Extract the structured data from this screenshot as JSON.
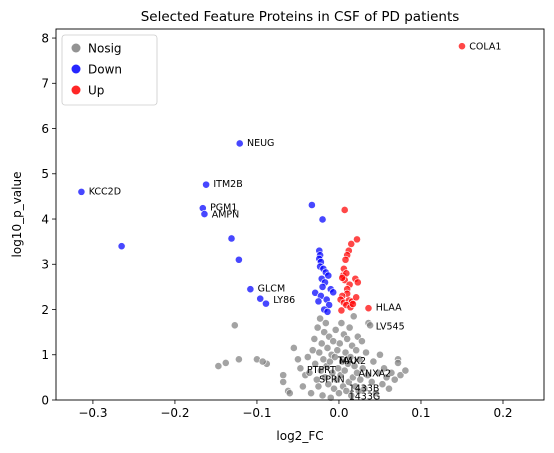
{
  "chart_data": {
    "type": "scatter",
    "title": "Selected Feature Proteins in CSF of PD patients",
    "xlabel": "log2_FC",
    "ylabel": "log10_p_value",
    "xlim": [
      -0.345,
      0.25
    ],
    "ylim": [
      0,
      8.2
    ],
    "x_ticks": [
      -0.3,
      -0.2,
      -0.1,
      0.0,
      0.1,
      0.2
    ],
    "x_tick_labels": [
      "−0.3",
      "−0.2",
      "−0.1",
      "0.0",
      "0.1",
      "0.2"
    ],
    "y_ticks": [
      0,
      1,
      2,
      3,
      4,
      5,
      6,
      7,
      8
    ],
    "y_tick_labels": [
      "0",
      "1",
      "2",
      "3",
      "4",
      "5",
      "6",
      "7",
      "8"
    ],
    "grid": false,
    "legend_position": "top-left",
    "colors": {
      "Nosig": "#808080",
      "Down": "#0000ff",
      "Up": "#ff0000"
    },
    "series": [
      {
        "name": "Nosig",
        "points": [
          [
            -0.127,
            1.65
          ],
          [
            -0.122,
            0.9
          ],
          [
            -0.147,
            0.75
          ],
          [
            -0.138,
            0.82
          ],
          [
            -0.1,
            0.9
          ],
          [
            -0.088,
            0.8
          ],
          [
            -0.093,
            0.85
          ],
          [
            -0.068,
            0.55
          ],
          [
            -0.068,
            0.4
          ],
          [
            -0.062,
            0.2
          ],
          [
            -0.06,
            0.15
          ],
          [
            -0.055,
            1.15
          ],
          [
            -0.05,
            0.9
          ],
          [
            -0.047,
            0.7
          ],
          [
            -0.044,
            0.3
          ],
          [
            -0.041,
            0.55
          ],
          [
            -0.038,
            0.95
          ],
          [
            -0.036,
            0.6
          ],
          [
            -0.034,
            0.15
          ],
          [
            -0.032,
            1.1
          ],
          [
            -0.03,
            1.35
          ],
          [
            -0.029,
            0.8
          ],
          [
            -0.027,
            0.45
          ],
          [
            -0.026,
            1.6
          ],
          [
            -0.025,
            0.3
          ],
          [
            -0.024,
            1.05
          ],
          [
            -0.023,
            1.8
          ],
          [
            -0.022,
            0.65
          ],
          [
            -0.021,
            1.25
          ],
          [
            -0.02,
            0.1
          ],
          [
            -0.019,
            0.9
          ],
          [
            -0.018,
            1.5
          ],
          [
            -0.017,
            0.5
          ],
          [
            -0.016,
            1.7
          ],
          [
            -0.015,
            0.75
          ],
          [
            -0.014,
            1.15
          ],
          [
            -0.013,
            0.35
          ],
          [
            -0.012,
            1.4
          ],
          [
            -0.011,
            0.85
          ],
          [
            -0.01,
            0.05
          ],
          [
            -0.009,
            1.0
          ],
          [
            -0.008,
            0.6
          ],
          [
            -0.007,
            1.3
          ],
          [
            -0.006,
            0.25
          ],
          [
            -0.005,
            0.95
          ],
          [
            -0.004,
            1.55
          ],
          [
            -0.003,
            0.45
          ],
          [
            -0.002,
            1.1
          ],
          [
            -0.001,
            0.7
          ],
          [
            0.0,
            0.15
          ],
          [
            0.001,
            1.25
          ],
          [
            0.002,
            0.55
          ],
          [
            0.003,
            1.7
          ],
          [
            0.004,
            0.85
          ],
          [
            0.005,
            0.3
          ],
          [
            0.006,
            1.45
          ],
          [
            0.007,
            0.65
          ],
          [
            0.008,
            1.05
          ],
          [
            0.009,
            0.2
          ],
          [
            0.01,
            1.35
          ],
          [
            0.011,
            0.8
          ],
          [
            0.012,
            0.4
          ],
          [
            0.013,
            1.6
          ],
          [
            0.014,
            0.95
          ],
          [
            0.015,
            0.1
          ],
          [
            0.016,
            1.2
          ],
          [
            0.017,
            0.5
          ],
          [
            0.018,
            1.85
          ],
          [
            0.019,
            0.75
          ],
          [
            0.02,
            0.3
          ],
          [
            0.021,
            1.1
          ],
          [
            0.022,
            0.6
          ],
          [
            0.023,
            1.4
          ],
          [
            0.024,
            0.2
          ],
          [
            0.025,
            0.9
          ],
          [
            0.026,
            0.45
          ],
          [
            0.028,
            1.3
          ],
          [
            0.029,
            0.7
          ],
          [
            0.031,
            0.25
          ],
          [
            0.033,
            1.05
          ],
          [
            0.035,
            0.55
          ],
          [
            0.036,
            1.7
          ],
          [
            0.038,
            1.65
          ],
          [
            0.04,
            0.4
          ],
          [
            0.042,
            0.85
          ],
          [
            0.045,
            0.15
          ],
          [
            0.048,
            0.6
          ],
          [
            0.05,
            1.0
          ],
          [
            0.053,
            0.35
          ],
          [
            0.055,
            0.7
          ],
          [
            0.058,
            0.5
          ],
          [
            0.061,
            0.25
          ],
          [
            0.064,
            0.6
          ],
          [
            0.068,
            0.45
          ],
          [
            0.072,
            0.9
          ],
          [
            0.072,
            0.82
          ],
          [
            0.075,
            0.55
          ],
          [
            0.081,
            0.65
          ]
        ]
      },
      {
        "name": "Down",
        "points": [
          [
            -0.121,
            5.67
          ],
          [
            -0.314,
            4.6
          ],
          [
            -0.162,
            4.76
          ],
          [
            -0.166,
            4.24
          ],
          [
            -0.164,
            4.11
          ],
          [
            -0.265,
            3.4
          ],
          [
            -0.131,
            3.57
          ],
          [
            -0.122,
            3.1
          ],
          [
            -0.108,
            2.45
          ],
          [
            -0.096,
            2.24
          ],
          [
            -0.089,
            2.13
          ],
          [
            -0.033,
            4.31
          ],
          [
            -0.02,
            3.99
          ],
          [
            -0.024,
            3.3
          ],
          [
            -0.023,
            3.2
          ],
          [
            -0.024,
            3.12
          ],
          [
            -0.022,
            3.05
          ],
          [
            -0.023,
            2.95
          ],
          [
            -0.019,
            2.9
          ],
          [
            -0.016,
            2.82
          ],
          [
            -0.021,
            2.68
          ],
          [
            -0.013,
            2.75
          ],
          [
            -0.017,
            2.6
          ],
          [
            -0.02,
            2.5
          ],
          [
            -0.029,
            2.37
          ],
          [
            -0.022,
            2.3
          ],
          [
            -0.025,
            2.18
          ],
          [
            -0.015,
            2.22
          ],
          [
            -0.01,
            2.45
          ],
          [
            -0.007,
            2.38
          ],
          [
            -0.012,
            2.1
          ],
          [
            -0.018,
            2.0
          ],
          [
            -0.014,
            1.95
          ]
        ]
      },
      {
        "name": "Up",
        "points": [
          [
            0.15,
            7.82
          ],
          [
            0.007,
            4.2
          ],
          [
            0.022,
            3.55
          ],
          [
            0.015,
            3.45
          ],
          [
            0.012,
            3.3
          ],
          [
            0.01,
            3.2
          ],
          [
            0.008,
            3.1
          ],
          [
            0.006,
            2.9
          ],
          [
            0.005,
            2.75
          ],
          [
            0.009,
            2.8
          ],
          [
            0.007,
            2.65
          ],
          [
            0.004,
            2.7
          ],
          [
            0.02,
            2.68
          ],
          [
            0.023,
            2.6
          ],
          [
            0.013,
            2.55
          ],
          [
            0.01,
            2.45
          ],
          [
            0.01,
            2.35
          ],
          [
            0.004,
            2.3
          ],
          [
            0.002,
            2.22
          ],
          [
            0.006,
            2.15
          ],
          [
            0.012,
            2.2
          ],
          [
            0.016,
            2.18
          ],
          [
            0.021,
            2.27
          ],
          [
            0.009,
            2.1
          ],
          [
            0.014,
            2.05
          ],
          [
            0.036,
            2.03
          ],
          [
            0.003,
            1.98
          ],
          [
            0.017,
            2.12
          ]
        ]
      }
    ],
    "annotations": [
      {
        "text": "COLA1",
        "x": 0.154,
        "y": 7.82
      },
      {
        "text": "NEUG",
        "x": -0.117,
        "y": 5.69
      },
      {
        "text": "ITM2B",
        "x": -0.158,
        "y": 4.78
      },
      {
        "text": "KCC2D",
        "x": -0.31,
        "y": 4.61
      },
      {
        "text": "PGM1",
        "x": -0.162,
        "y": 4.26
      },
      {
        "text": "AMPN",
        "x": -0.16,
        "y": 4.11
      },
      {
        "text": "GLCM",
        "x": -0.104,
        "y": 2.47
      },
      {
        "text": "LY86",
        "x": -0.085,
        "y": 2.22
      },
      {
        "text": "HLAA",
        "x": 0.04,
        "y": 2.05
      },
      {
        "text": "LV545",
        "x": 0.04,
        "y": 1.63
      },
      {
        "text": "MAX2",
        "x": -0.005,
        "y": 0.87
      },
      {
        "text": "TAU",
        "x": -0.006,
        "y": 0.88
      },
      {
        "text": "ANXA2",
        "x": 0.019,
        "y": 0.59
      },
      {
        "text": "PTPRT",
        "x": -0.044,
        "y": 0.67
      },
      {
        "text": "SPRN",
        "x": -0.029,
        "y": 0.46
      },
      {
        "text": "1433B",
        "x": 0.007,
        "y": 0.26
      },
      {
        "text": "1433G",
        "x": 0.007,
        "y": 0.08
      }
    ]
  }
}
